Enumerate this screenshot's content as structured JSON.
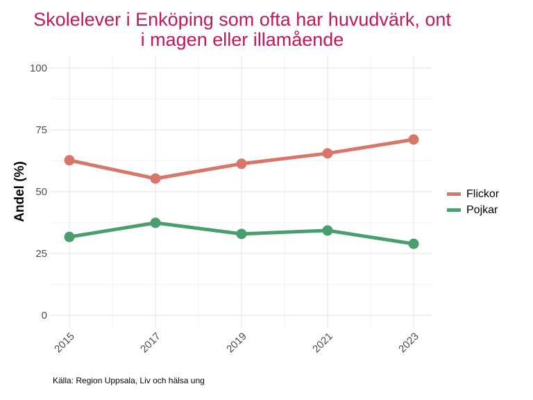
{
  "chart_data": {
    "type": "line",
    "title": "Skolelever i Enköping som ofta har huvudvärk, ont i magen eller illamående",
    "title_lines": [
      "Skolelever i Enköping som ofta har huvudvärk, ont",
      "i magen eller illamående"
    ],
    "xlabel": "",
    "ylabel": "Andel (%)",
    "x": [
      2015,
      2017,
      2019,
      2021,
      2023
    ],
    "x_tick_labels": [
      "2015",
      "2017",
      "2019",
      "2021",
      "2023"
    ],
    "y_ticks": [
      0,
      25,
      50,
      75,
      100
    ],
    "y_tick_labels": [
      "0",
      "25",
      "50",
      "75",
      "100"
    ],
    "ylim": [
      0,
      100
    ],
    "grid": true,
    "legend_position": "right",
    "series": [
      {
        "name": "Flickor",
        "color": "#D6776A",
        "values": [
          62.7,
          55.3,
          61.3,
          65.5,
          71.1
        ]
      },
      {
        "name": "Pojkar",
        "color": "#4A9E6E",
        "values": [
          31.7,
          37.4,
          32.9,
          34.3,
          28.9
        ]
      }
    ],
    "caption": "Källa: Region Uppsala, Liv och hälsa ung"
  }
}
